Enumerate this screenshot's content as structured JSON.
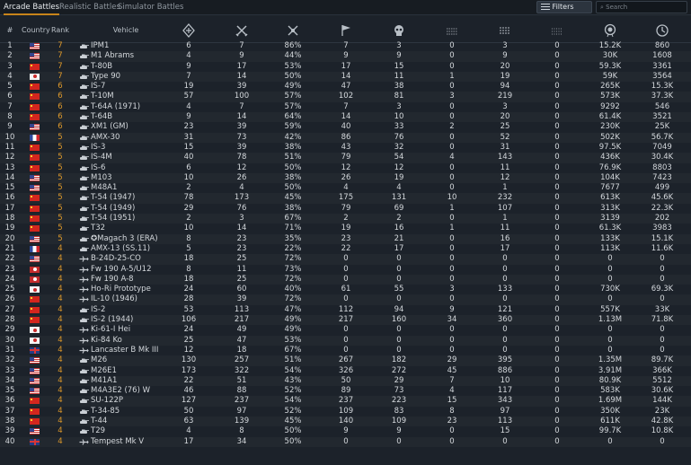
{
  "tabs": [
    {
      "label": "Arcade Battles",
      "active": true
    },
    {
      "label": "Realistic Battles",
      "active": false
    },
    {
      "label": "Simulator Battles",
      "active": false
    }
  ],
  "filters_label": "Filters",
  "search_placeholder": "Search",
  "columns": {
    "index": "#",
    "country": "Country",
    "rank": "Rank",
    "vehicle": "Vehicle",
    "icons": [
      "victories-icon",
      "battles-icon",
      "win-rate-icon",
      "respawns-icon",
      "deaths-icon",
      "air-kills-icon",
      "ground-kills-icon",
      "naval-kills-icon",
      "sl-icon",
      "rp-icon"
    ]
  },
  "rows": [
    {
      "i": "1",
      "c": "us",
      "r": "7",
      "t": "tank",
      "n": "IPM1",
      "v": [
        "6",
        "7",
        "86%",
        "7",
        "3",
        "0",
        "3",
        "0",
        "15.2K",
        "860"
      ]
    },
    {
      "i": "2",
      "c": "us",
      "r": "7",
      "t": "tank",
      "n": "M1 Abrams",
      "v": [
        "4",
        "9",
        "44%",
        "9",
        "9",
        "0",
        "9",
        "0",
        "30K",
        "1608"
      ]
    },
    {
      "i": "3",
      "c": "cn",
      "r": "7",
      "t": "tank",
      "n": "T-80B",
      "v": [
        "9",
        "17",
        "53%",
        "17",
        "15",
        "0",
        "20",
        "0",
        "59.3K",
        "3361"
      ]
    },
    {
      "i": "4",
      "c": "jp",
      "r": "7",
      "t": "tank",
      "n": "Type 90",
      "v": [
        "7",
        "14",
        "50%",
        "14",
        "11",
        "1",
        "19",
        "0",
        "59K",
        "3564"
      ]
    },
    {
      "i": "5",
      "c": "cn",
      "r": "6",
      "t": "tank",
      "n": "IS-7",
      "v": [
        "19",
        "39",
        "49%",
        "47",
        "38",
        "0",
        "94",
        "0",
        "265K",
        "15.3K"
      ]
    },
    {
      "i": "6",
      "c": "cn",
      "r": "6",
      "t": "tank",
      "n": "T-10M",
      "v": [
        "57",
        "100",
        "57%",
        "102",
        "81",
        "3",
        "219",
        "0",
        "573K",
        "37.3K"
      ]
    },
    {
      "i": "7",
      "c": "cn",
      "r": "6",
      "t": "tank",
      "n": "T-64A (1971)",
      "v": [
        "4",
        "7",
        "57%",
        "7",
        "3",
        "0",
        "3",
        "0",
        "9292",
        "546"
      ]
    },
    {
      "i": "8",
      "c": "cn",
      "r": "6",
      "t": "tank",
      "n": "T-64B",
      "v": [
        "9",
        "14",
        "64%",
        "14",
        "10",
        "0",
        "20",
        "0",
        "61.4K",
        "3521"
      ]
    },
    {
      "i": "9",
      "c": "us",
      "r": "6",
      "t": "tank",
      "n": "XM1 (GM)",
      "v": [
        "23",
        "39",
        "59%",
        "40",
        "33",
        "2",
        "25",
        "0",
        "230K",
        "25K"
      ]
    },
    {
      "i": "10",
      "c": "fr",
      "r": "5",
      "t": "tank",
      "n": "AMX-30",
      "v": [
        "31",
        "73",
        "42%",
        "86",
        "76",
        "0",
        "52",
        "0",
        "502K",
        "56.7K"
      ]
    },
    {
      "i": "11",
      "c": "cn",
      "r": "5",
      "t": "tank",
      "n": "IS-3",
      "v": [
        "15",
        "39",
        "38%",
        "43",
        "32",
        "0",
        "31",
        "0",
        "97.5K",
        "7049"
      ]
    },
    {
      "i": "12",
      "c": "cn",
      "r": "5",
      "t": "tank",
      "n": "IS-4M",
      "v": [
        "40",
        "78",
        "51%",
        "79",
        "54",
        "4",
        "143",
        "0",
        "436K",
        "30.4K"
      ]
    },
    {
      "i": "13",
      "c": "cn",
      "r": "5",
      "t": "tank",
      "n": "IS-6",
      "v": [
        "6",
        "12",
        "50%",
        "12",
        "12",
        "0",
        "11",
        "0",
        "76.9K",
        "8803"
      ]
    },
    {
      "i": "14",
      "c": "us",
      "r": "5",
      "t": "tank",
      "n": "M103",
      "v": [
        "10",
        "26",
        "38%",
        "26",
        "19",
        "0",
        "12",
        "0",
        "104K",
        "7423"
      ]
    },
    {
      "i": "15",
      "c": "us",
      "r": "5",
      "t": "tank",
      "n": "M48A1",
      "v": [
        "2",
        "4",
        "50%",
        "4",
        "4",
        "0",
        "1",
        "0",
        "7677",
        "499"
      ]
    },
    {
      "i": "16",
      "c": "cn",
      "r": "5",
      "t": "tank",
      "n": "T-54 (1947)",
      "v": [
        "78",
        "173",
        "45%",
        "175",
        "131",
        "10",
        "232",
        "0",
        "613K",
        "45.6K"
      ]
    },
    {
      "i": "17",
      "c": "cn",
      "r": "5",
      "t": "tank",
      "n": "T-54 (1949)",
      "v": [
        "29",
        "76",
        "38%",
        "79",
        "69",
        "1",
        "107",
        "0",
        "313K",
        "22.3K"
      ]
    },
    {
      "i": "18",
      "c": "cn",
      "r": "5",
      "t": "tank",
      "n": "T-54 (1951)",
      "v": [
        "2",
        "3",
        "67%",
        "2",
        "2",
        "0",
        "1",
        "0",
        "3139",
        "202"
      ]
    },
    {
      "i": "19",
      "c": "cn",
      "r": "5",
      "t": "tank",
      "n": "T32",
      "v": [
        "10",
        "14",
        "71%",
        "19",
        "16",
        "1",
        "11",
        "0",
        "61.3K",
        "3983"
      ]
    },
    {
      "i": "20",
      "c": "us",
      "r": "5",
      "t": "tank",
      "n": "✪Magach 3 (ERA)",
      "v": [
        "8",
        "23",
        "35%",
        "23",
        "21",
        "0",
        "16",
        "0",
        "133K",
        "15.1K"
      ]
    },
    {
      "i": "21",
      "c": "fr",
      "r": "4",
      "t": "tank",
      "n": "AMX-13 (SS.11)",
      "v": [
        "5",
        "23",
        "22%",
        "22",
        "17",
        "0",
        "17",
        "0",
        "113K",
        "11.6K"
      ]
    },
    {
      "i": "22",
      "c": "us",
      "r": "4",
      "t": "plane",
      "n": "B-24D-25-CO",
      "v": [
        "18",
        "25",
        "72%",
        "0",
        "0",
        "0",
        "0",
        "0",
        "0",
        "0"
      ]
    },
    {
      "i": "23",
      "c": "de",
      "r": "4",
      "t": "plane",
      "n": "Fw 190 A-5/U12",
      "v": [
        "8",
        "11",
        "73%",
        "0",
        "0",
        "0",
        "0",
        "0",
        "0",
        "0"
      ]
    },
    {
      "i": "24",
      "c": "de",
      "r": "4",
      "t": "plane",
      "n": "Fw 190 A-8",
      "v": [
        "18",
        "25",
        "72%",
        "0",
        "0",
        "0",
        "0",
        "0",
        "0",
        "0"
      ]
    },
    {
      "i": "25",
      "c": "jp",
      "r": "4",
      "t": "plane",
      "n": "Ho-Ri Prototype",
      "v": [
        "24",
        "60",
        "40%",
        "61",
        "55",
        "3",
        "133",
        "0",
        "730K",
        "69.3K"
      ]
    },
    {
      "i": "26",
      "c": "cn",
      "r": "4",
      "t": "plane",
      "n": "IL-10 (1946)",
      "v": [
        "28",
        "39",
        "72%",
        "0",
        "0",
        "0",
        "0",
        "0",
        "0",
        "0"
      ]
    },
    {
      "i": "27",
      "c": "cn",
      "r": "4",
      "t": "tank",
      "n": "IS-2",
      "v": [
        "53",
        "113",
        "47%",
        "112",
        "94",
        "9",
        "121",
        "0",
        "557K",
        "33K"
      ]
    },
    {
      "i": "28",
      "c": "cn",
      "r": "4",
      "t": "tank",
      "n": "IS-2 (1944)",
      "v": [
        "106",
        "217",
        "49%",
        "217",
        "160",
        "34",
        "360",
        "0",
        "1.13M",
        "71.8K"
      ]
    },
    {
      "i": "29",
      "c": "jp",
      "r": "4",
      "t": "plane",
      "n": "Ki-61-I Hei",
      "v": [
        "24",
        "49",
        "49%",
        "0",
        "0",
        "0",
        "0",
        "0",
        "0",
        "0"
      ]
    },
    {
      "i": "30",
      "c": "jp",
      "r": "4",
      "t": "plane",
      "n": "Ki-84 Ko",
      "v": [
        "25",
        "47",
        "53%",
        "0",
        "0",
        "0",
        "0",
        "0",
        "0",
        "0"
      ]
    },
    {
      "i": "31",
      "c": "uk",
      "r": "4",
      "t": "plane",
      "n": "Lancaster B Mk III",
      "v": [
        "12",
        "18",
        "67%",
        "0",
        "0",
        "0",
        "0",
        "0",
        "0",
        "0"
      ]
    },
    {
      "i": "32",
      "c": "us",
      "r": "4",
      "t": "tank",
      "n": "M26",
      "v": [
        "130",
        "257",
        "51%",
        "267",
        "182",
        "29",
        "395",
        "0",
        "1.35M",
        "89.7K"
      ]
    },
    {
      "i": "33",
      "c": "us",
      "r": "4",
      "t": "tank",
      "n": "M26E1",
      "v": [
        "173",
        "322",
        "54%",
        "326",
        "272",
        "45",
        "886",
        "0",
        "3.91M",
        "366K"
      ]
    },
    {
      "i": "34",
      "c": "us",
      "r": "4",
      "t": "tank",
      "n": "M41A1",
      "v": [
        "22",
        "51",
        "43%",
        "50",
        "29",
        "7",
        "10",
        "0",
        "80.9K",
        "5512"
      ]
    },
    {
      "i": "35",
      "c": "us",
      "r": "4",
      "t": "tank",
      "n": "M4A3E2 (76) W",
      "v": [
        "46",
        "88",
        "52%",
        "89",
        "73",
        "4",
        "117",
        "0",
        "583K",
        "30.6K"
      ]
    },
    {
      "i": "36",
      "c": "cn",
      "r": "4",
      "t": "tank",
      "n": "SU-122P",
      "v": [
        "127",
        "237",
        "54%",
        "237",
        "223",
        "15",
        "343",
        "0",
        "1.69M",
        "144K"
      ]
    },
    {
      "i": "37",
      "c": "cn",
      "r": "4",
      "t": "tank",
      "n": "T-34-85",
      "v": [
        "50",
        "97",
        "52%",
        "109",
        "83",
        "8",
        "97",
        "0",
        "350K",
        "23K"
      ]
    },
    {
      "i": "38",
      "c": "cn",
      "r": "4",
      "t": "tank",
      "n": "T-44",
      "v": [
        "63",
        "139",
        "45%",
        "140",
        "109",
        "23",
        "113",
        "0",
        "611K",
        "42.8K"
      ]
    },
    {
      "i": "39",
      "c": "us",
      "r": "4",
      "t": "tank",
      "n": "T29",
      "v": [
        "4",
        "8",
        "50%",
        "9",
        "9",
        "0",
        "15",
        "0",
        "99.7K",
        "10.8K"
      ]
    },
    {
      "i": "40",
      "c": "uk",
      "r": "4",
      "t": "plane",
      "n": "Tempest Mk V",
      "v": [
        "17",
        "34",
        "50%",
        "0",
        "0",
        "0",
        "0",
        "0",
        "0",
        "0"
      ]
    }
  ]
}
